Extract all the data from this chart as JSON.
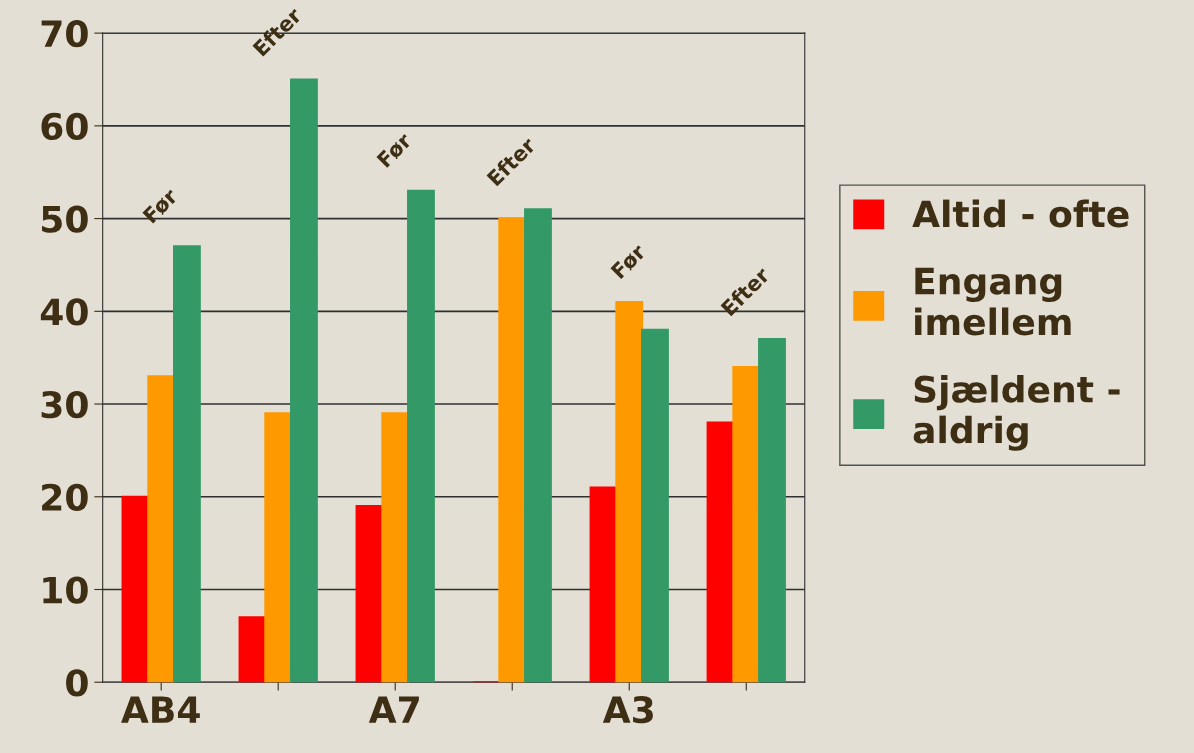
{
  "chart_data": {
    "type": "bar",
    "categories": [
      "AB4",
      null,
      "A7",
      null,
      "A3",
      null
    ],
    "series": [
      {
        "name": "Altid - ofte",
        "color": "#ff0000",
        "values": [
          20,
          7,
          19,
          0,
          21,
          28
        ]
      },
      {
        "name": "Engang\nimellem",
        "color": "#ff9900",
        "values": [
          33,
          29,
          29,
          50,
          41,
          34
        ]
      },
      {
        "name": "Sjældent -\naldrig",
        "color": "#339966",
        "values": [
          47,
          65,
          53,
          51,
          38,
          37
        ]
      }
    ],
    "ylim": [
      0,
      70
    ],
    "yticks": [
      0,
      10,
      20,
      30,
      40,
      50,
      60,
      70
    ],
    "grid": "y",
    "legend": "right",
    "annotations": [
      "Før",
      "Efter",
      "Før",
      "Efter",
      "Før",
      "Efter"
    ]
  }
}
